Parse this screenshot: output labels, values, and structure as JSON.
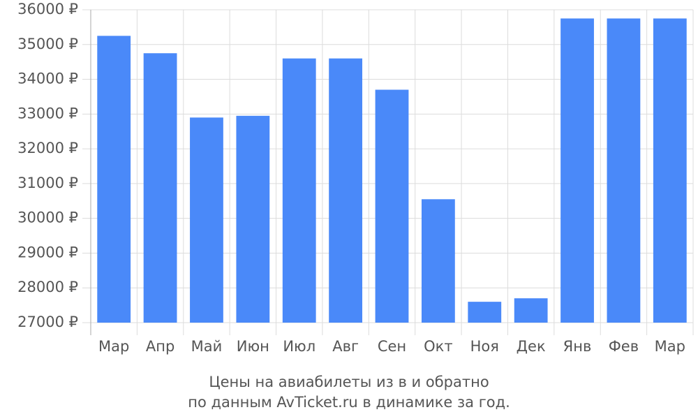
{
  "chart_data": {
    "type": "bar",
    "title": "Цены на авиабилеты из  в  и обратно",
    "subtitle": "по данным AvTicket.ru в динамике за год.",
    "categories": [
      "Мар",
      "Апр",
      "Май",
      "Июн",
      "Июл",
      "Авг",
      "Сен",
      "Окт",
      "Ноя",
      "Дек",
      "Янв",
      "Фев",
      "Мар"
    ],
    "values": [
      35250,
      34750,
      32900,
      32950,
      34600,
      34600,
      33700,
      30550,
      27600,
      27700,
      35750,
      35750,
      35750
    ],
    "color": "#4a89f9",
    "ylim": [
      27000,
      36000
    ],
    "yticks": [
      {
        "value": 27000,
        "label": "27000 ₽"
      },
      {
        "value": 28000,
        "label": "28000 ₽"
      },
      {
        "value": 29000,
        "label": "29000 ₽"
      },
      {
        "value": 30000,
        "label": "30000 ₽"
      },
      {
        "value": 31000,
        "label": "31000 ₽"
      },
      {
        "value": 32000,
        "label": "32000 ₽"
      },
      {
        "value": 33000,
        "label": "33000 ₽"
      },
      {
        "value": 34000,
        "label": "34000 ₽"
      },
      {
        "value": 35000,
        "label": "35000 ₽"
      },
      {
        "value": 36000,
        "label": "36000 ₽"
      }
    ],
    "grid": true
  }
}
